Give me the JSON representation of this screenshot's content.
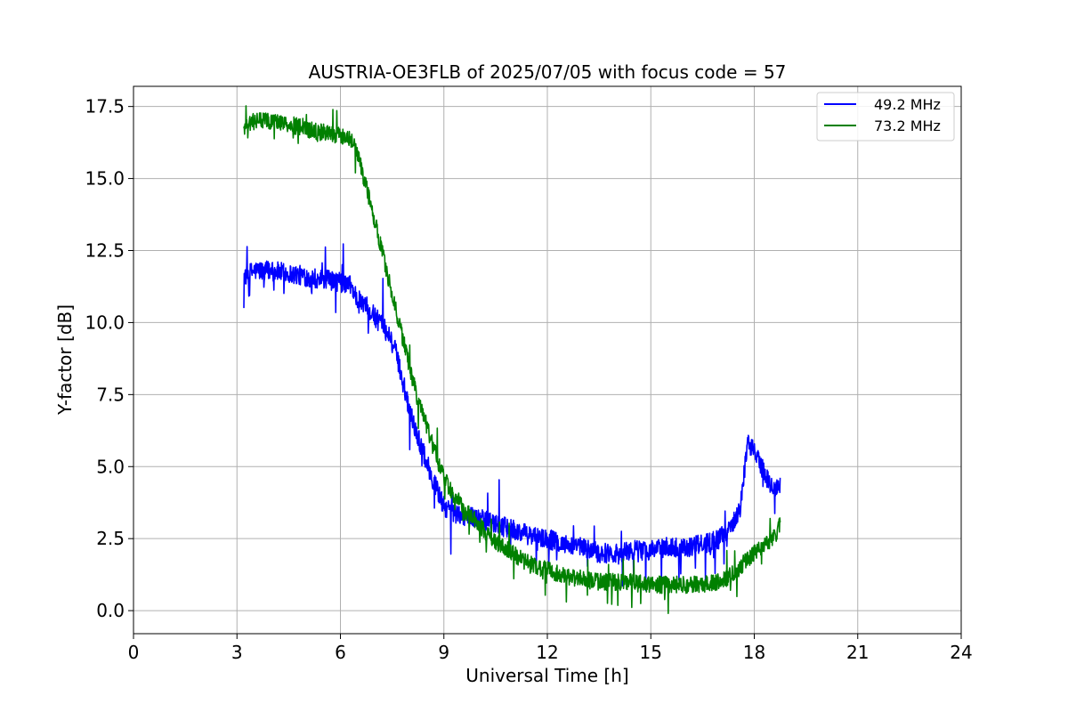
{
  "chart_data": {
    "type": "line",
    "title": "AUSTRIA-OE3FLB of 2025/07/05 with focus code = 57",
    "xlabel": "Universal Time [h]",
    "ylabel": "Y-factor [dB]",
    "xlim": [
      0,
      24
    ],
    "ylim": [
      -0.8,
      18.2
    ],
    "xticks": [
      0,
      3,
      6,
      9,
      12,
      15,
      18,
      21,
      24
    ],
    "xtick_labels": [
      "0",
      "3",
      "6",
      "9",
      "12",
      "15",
      "18",
      "21",
      "24"
    ],
    "yticks": [
      0.0,
      2.5,
      5.0,
      7.5,
      10.0,
      12.5,
      15.0,
      17.5
    ],
    "ytick_labels": [
      "0.0",
      "2.5",
      "5.0",
      "7.5",
      "10.0",
      "12.5",
      "15.0",
      "17.5"
    ],
    "grid": true,
    "legend_position": "top-right",
    "series": [
      {
        "name": "49.2 MHz",
        "color": "#0000ff",
        "noise": 0.35,
        "x": [
          3.2,
          3.5,
          4.0,
          4.5,
          5.0,
          5.5,
          6.0,
          6.3,
          6.5,
          6.8,
          7.0,
          7.2,
          7.4,
          7.6,
          7.8,
          8.0,
          8.2,
          8.4,
          8.6,
          8.8,
          9.0,
          9.3,
          9.6,
          10.0,
          10.5,
          11.0,
          11.5,
          12.0,
          12.5,
          13.0,
          13.5,
          14.0,
          14.5,
          15.0,
          15.5,
          16.0,
          16.5,
          17.0,
          17.3,
          17.6,
          17.8,
          18.0,
          18.2,
          18.4,
          18.6,
          18.75
        ],
        "y": [
          11.6,
          11.8,
          11.8,
          11.7,
          11.6,
          11.5,
          11.4,
          11.3,
          10.8,
          10.5,
          10.2,
          9.9,
          9.6,
          9.0,
          8.0,
          7.0,
          6.2,
          5.5,
          4.8,
          4.2,
          3.6,
          3.4,
          3.3,
          3.2,
          3.0,
          2.8,
          2.6,
          2.5,
          2.3,
          2.2,
          2.0,
          2.0,
          2.1,
          2.1,
          2.2,
          2.2,
          2.3,
          2.5,
          2.9,
          3.6,
          5.8,
          5.6,
          5.0,
          4.5,
          4.2,
          4.3
        ]
      },
      {
        "name": "73.2 MHz",
        "color": "#008000",
        "noise": 0.3,
        "x": [
          3.2,
          3.5,
          4.0,
          4.5,
          5.0,
          5.5,
          6.0,
          6.3,
          6.5,
          6.8,
          7.0,
          7.2,
          7.4,
          7.6,
          7.8,
          8.0,
          8.2,
          8.4,
          8.6,
          8.8,
          9.0,
          9.3,
          9.6,
          10.0,
          10.5,
          11.0,
          11.5,
          12.0,
          12.5,
          13.0,
          13.5,
          14.0,
          14.5,
          15.0,
          15.5,
          16.0,
          16.5,
          17.0,
          17.3,
          17.6,
          17.8,
          18.0,
          18.2,
          18.4,
          18.6,
          18.75
        ],
        "y": [
          16.8,
          17.0,
          17.0,
          16.9,
          16.7,
          16.6,
          16.5,
          16.4,
          15.8,
          14.5,
          13.5,
          12.5,
          11.5,
          10.5,
          9.5,
          8.5,
          7.5,
          6.8,
          6.0,
          5.3,
          4.6,
          4.0,
          3.5,
          3.0,
          2.4,
          2.0,
          1.6,
          1.4,
          1.2,
          1.1,
          1.0,
          1.0,
          1.0,
          0.9,
          0.9,
          0.9,
          0.9,
          1.0,
          1.2,
          1.5,
          1.8,
          2.0,
          2.2,
          2.3,
          2.6,
          3.0
        ]
      }
    ]
  }
}
